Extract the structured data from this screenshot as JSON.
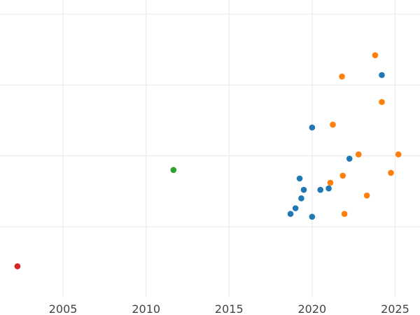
{
  "chart_data": {
    "type": "scatter",
    "title": "",
    "xlabel": "",
    "ylabel": "",
    "xlim": [
      2001.2,
      2026.5
    ],
    "ylim": [
      0,
      21
    ],
    "grid": true,
    "legend": "none",
    "x_ticks": [
      2005,
      2010,
      2015,
      2020,
      2025
    ],
    "x_tick_labels": [
      "2005",
      "2010",
      "2015",
      "2020",
      "2025"
    ],
    "y_ticks": [
      5,
      10,
      15,
      20
    ],
    "series": [
      {
        "color": "#1f77b4",
        "points": [
          {
            "x": 2018.7,
            "y": 5.9
          },
          {
            "x": 2019.0,
            "y": 6.3
          },
          {
            "x": 2019.35,
            "y": 7.0
          },
          {
            "x": 2019.25,
            "y": 8.4
          },
          {
            "x": 2019.5,
            "y": 7.6
          },
          {
            "x": 2020.0,
            "y": 5.7
          },
          {
            "x": 2020.0,
            "y": 12.0
          },
          {
            "x": 2020.5,
            "y": 7.6
          },
          {
            "x": 2021.0,
            "y": 7.7
          },
          {
            "x": 2022.25,
            "y": 9.8
          },
          {
            "x": 2024.2,
            "y": 15.7
          }
        ]
      },
      {
        "color": "#ff7f0e",
        "points": [
          {
            "x": 2021.1,
            "y": 8.1
          },
          {
            "x": 2021.25,
            "y": 12.2
          },
          {
            "x": 2021.8,
            "y": 15.6
          },
          {
            "x": 2021.85,
            "y": 8.6
          },
          {
            "x": 2021.95,
            "y": 5.9
          },
          {
            "x": 2022.8,
            "y": 10.1
          },
          {
            "x": 2023.3,
            "y": 7.2
          },
          {
            "x": 2023.8,
            "y": 17.1
          },
          {
            "x": 2024.2,
            "y": 13.8
          },
          {
            "x": 2024.75,
            "y": 8.8
          },
          {
            "x": 2025.2,
            "y": 10.1
          }
        ]
      },
      {
        "color": "#2ca02c",
        "points": [
          {
            "x": 2011.65,
            "y": 9.0
          }
        ]
      },
      {
        "color": "#d62728",
        "points": [
          {
            "x": 2002.25,
            "y": 2.2
          }
        ]
      }
    ]
  }
}
